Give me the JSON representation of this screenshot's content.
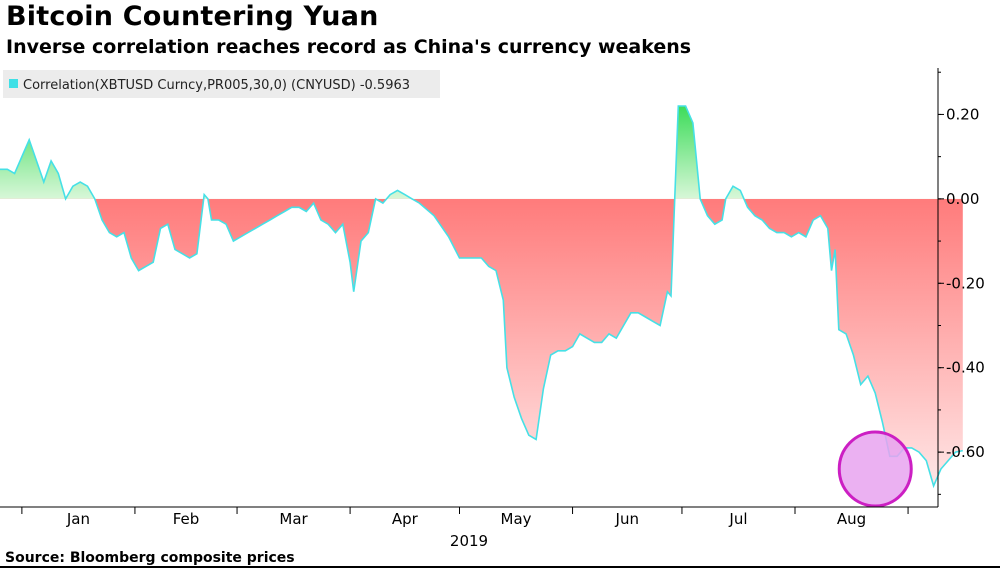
{
  "header": {
    "title": "Bitcoin Countering Yuan",
    "subtitle": "Inverse correlation reaches record as China's currency weakens"
  },
  "footer": {
    "source": "Source: Bloomberg composite prices"
  },
  "colors": {
    "positive_fill_top": "#3ddc5a",
    "positive_fill_bottom": "#d8f7d8",
    "negative_fill_top": "#ff7b7b",
    "negative_fill_bottom": "#ffe6e6",
    "line": "#46e0e6",
    "highlight_fill": "#e8a3f0",
    "highlight_stroke": "#cc1fc3",
    "legend_bg": "#ececec",
    "legend_swatch": "#3fe0e6"
  },
  "chart_data": {
    "type": "area",
    "title": "Bitcoin Countering Yuan",
    "subtitle": "Inverse correlation reaches record as China's currency weakens",
    "legend": {
      "label": "Correlation(XBTUSD Curncy,PR005,30,0) (CNYUSD) -0.5963",
      "placement": "top-left"
    },
    "year_label": "2019",
    "x_month_labels": [
      "Jan",
      "Feb",
      "Mar",
      "Apr",
      "May",
      "Jun",
      "Jul",
      "Aug"
    ],
    "yticks": [
      0.2,
      0.0,
      -0.2,
      -0.4,
      -0.6
    ],
    "ytick_labels": [
      "0.20",
      "0.00",
      "-0.20",
      "-0.40",
      "-0.60"
    ],
    "ylim": [
      -0.73,
      0.31
    ],
    "xlim": [
      "2018-12-26",
      "2019-09-04"
    ],
    "axis_position": "right",
    "grid": false,
    "annotations": [
      {
        "type": "circle",
        "note": "highlight",
        "x": "2019-08-23",
        "y": -0.64
      }
    ],
    "series": [
      {
        "name": "Correlation(XBTUSD Curncy,PR005,30,0) (CNYUSD)",
        "last_value": -0.5963,
        "points": [
          [
            "2018-12-26",
            0.07
          ],
          [
            "2018-12-28",
            0.07
          ],
          [
            "2018-12-30",
            0.06
          ],
          [
            "2019-01-01",
            0.1
          ],
          [
            "2019-01-03",
            0.14
          ],
          [
            "2019-01-05",
            0.09
          ],
          [
            "2019-01-07",
            0.04
          ],
          [
            "2019-01-09",
            0.09
          ],
          [
            "2019-01-11",
            0.06
          ],
          [
            "2019-01-13",
            0.0
          ],
          [
            "2019-01-15",
            0.03
          ],
          [
            "2019-01-17",
            0.04
          ],
          [
            "2019-01-19",
            0.03
          ],
          [
            "2019-01-21",
            0.0
          ],
          [
            "2019-01-23",
            -0.05
          ],
          [
            "2019-01-25",
            -0.08
          ],
          [
            "2019-01-27",
            -0.09
          ],
          [
            "2019-01-29",
            -0.08
          ],
          [
            "2019-01-31",
            -0.14
          ],
          [
            "2019-02-02",
            -0.17
          ],
          [
            "2019-02-04",
            -0.16
          ],
          [
            "2019-02-06",
            -0.15
          ],
          [
            "2019-02-08",
            -0.07
          ],
          [
            "2019-02-10",
            -0.06
          ],
          [
            "2019-02-12",
            -0.12
          ],
          [
            "2019-02-14",
            -0.13
          ],
          [
            "2019-02-16",
            -0.14
          ],
          [
            "2019-02-18",
            -0.13
          ],
          [
            "2019-02-20",
            0.01
          ],
          [
            "2019-02-21",
            0.0
          ],
          [
            "2019-02-22",
            -0.05
          ],
          [
            "2019-02-24",
            -0.05
          ],
          [
            "2019-02-26",
            -0.06
          ],
          [
            "2019-02-28",
            -0.1
          ],
          [
            "2019-03-02",
            -0.09
          ],
          [
            "2019-03-04",
            -0.08
          ],
          [
            "2019-03-06",
            -0.07
          ],
          [
            "2019-03-08",
            -0.06
          ],
          [
            "2019-03-10",
            -0.05
          ],
          [
            "2019-03-12",
            -0.04
          ],
          [
            "2019-03-14",
            -0.03
          ],
          [
            "2019-03-16",
            -0.02
          ],
          [
            "2019-03-18",
            -0.02
          ],
          [
            "2019-03-20",
            -0.03
          ],
          [
            "2019-03-22",
            -0.01
          ],
          [
            "2019-03-24",
            -0.05
          ],
          [
            "2019-03-26",
            -0.06
          ],
          [
            "2019-03-28",
            -0.08
          ],
          [
            "2019-03-30",
            -0.06
          ],
          [
            "2019-04-01",
            -0.15
          ],
          [
            "2019-04-02",
            -0.22
          ],
          [
            "2019-04-04",
            -0.1
          ],
          [
            "2019-04-06",
            -0.08
          ],
          [
            "2019-04-08",
            0.0
          ],
          [
            "2019-04-10",
            -0.01
          ],
          [
            "2019-04-12",
            0.01
          ],
          [
            "2019-04-14",
            0.02
          ],
          [
            "2019-04-16",
            0.01
          ],
          [
            "2019-04-18",
            0.0
          ],
          [
            "2019-04-20",
            -0.01
          ],
          [
            "2019-04-24",
            -0.04
          ],
          [
            "2019-04-28",
            -0.09
          ],
          [
            "2019-05-01",
            -0.14
          ],
          [
            "2019-05-04",
            -0.14
          ],
          [
            "2019-05-07",
            -0.14
          ],
          [
            "2019-05-09",
            -0.16
          ],
          [
            "2019-05-11",
            -0.17
          ],
          [
            "2019-05-13",
            -0.24
          ],
          [
            "2019-05-14",
            -0.4
          ],
          [
            "2019-05-16",
            -0.47
          ],
          [
            "2019-05-18",
            -0.52
          ],
          [
            "2019-05-20",
            -0.56
          ],
          [
            "2019-05-22",
            -0.57
          ],
          [
            "2019-05-24",
            -0.45
          ],
          [
            "2019-05-26",
            -0.37
          ],
          [
            "2019-05-28",
            -0.36
          ],
          [
            "2019-05-30",
            -0.36
          ],
          [
            "2019-06-01",
            -0.35
          ],
          [
            "2019-06-03",
            -0.32
          ],
          [
            "2019-06-05",
            -0.33
          ],
          [
            "2019-06-07",
            -0.34
          ],
          [
            "2019-06-09",
            -0.34
          ],
          [
            "2019-06-11",
            -0.32
          ],
          [
            "2019-06-13",
            -0.33
          ],
          [
            "2019-06-15",
            -0.3
          ],
          [
            "2019-06-17",
            -0.27
          ],
          [
            "2019-06-19",
            -0.27
          ],
          [
            "2019-06-21",
            -0.28
          ],
          [
            "2019-06-23",
            -0.29
          ],
          [
            "2019-06-25",
            -0.3
          ],
          [
            "2019-06-27",
            -0.22
          ],
          [
            "2019-06-28",
            -0.23
          ],
          [
            "2019-06-30",
            0.22
          ],
          [
            "2019-07-02",
            0.22
          ],
          [
            "2019-07-04",
            0.18
          ],
          [
            "2019-07-06",
            0.0
          ],
          [
            "2019-07-08",
            -0.04
          ],
          [
            "2019-07-10",
            -0.06
          ],
          [
            "2019-07-12",
            -0.05
          ],
          [
            "2019-07-13",
            0.0
          ],
          [
            "2019-07-15",
            0.03
          ],
          [
            "2019-07-17",
            0.02
          ],
          [
            "2019-07-19",
            -0.02
          ],
          [
            "2019-07-21",
            -0.04
          ],
          [
            "2019-07-23",
            -0.05
          ],
          [
            "2019-07-25",
            -0.07
          ],
          [
            "2019-07-27",
            -0.08
          ],
          [
            "2019-07-29",
            -0.08
          ],
          [
            "2019-07-31",
            -0.09
          ],
          [
            "2019-08-02",
            -0.08
          ],
          [
            "2019-08-04",
            -0.09
          ],
          [
            "2019-08-06",
            -0.05
          ],
          [
            "2019-08-08",
            -0.04
          ],
          [
            "2019-08-10",
            -0.07
          ],
          [
            "2019-08-11",
            -0.17
          ],
          [
            "2019-08-12",
            -0.12
          ],
          [
            "2019-08-13",
            -0.31
          ],
          [
            "2019-08-15",
            -0.32
          ],
          [
            "2019-08-17",
            -0.37
          ],
          [
            "2019-08-19",
            -0.44
          ],
          [
            "2019-08-21",
            -0.42
          ],
          [
            "2019-08-23",
            -0.46
          ],
          [
            "2019-08-25",
            -0.53
          ],
          [
            "2019-08-27",
            -0.61
          ],
          [
            "2019-08-29",
            -0.61
          ],
          [
            "2019-08-31",
            -0.59
          ],
          [
            "2019-09-02",
            -0.59
          ],
          [
            "2019-09-04",
            -0.6
          ],
          [
            "2019-09-06",
            -0.62
          ],
          [
            "2019-09-08",
            -0.68
          ],
          [
            "2019-09-10",
            -0.64
          ],
          [
            "2019-09-12",
            -0.62
          ],
          [
            "2019-09-14",
            -0.6
          ],
          [
            "2019-09-16",
            -0.5963
          ]
        ]
      }
    ]
  }
}
